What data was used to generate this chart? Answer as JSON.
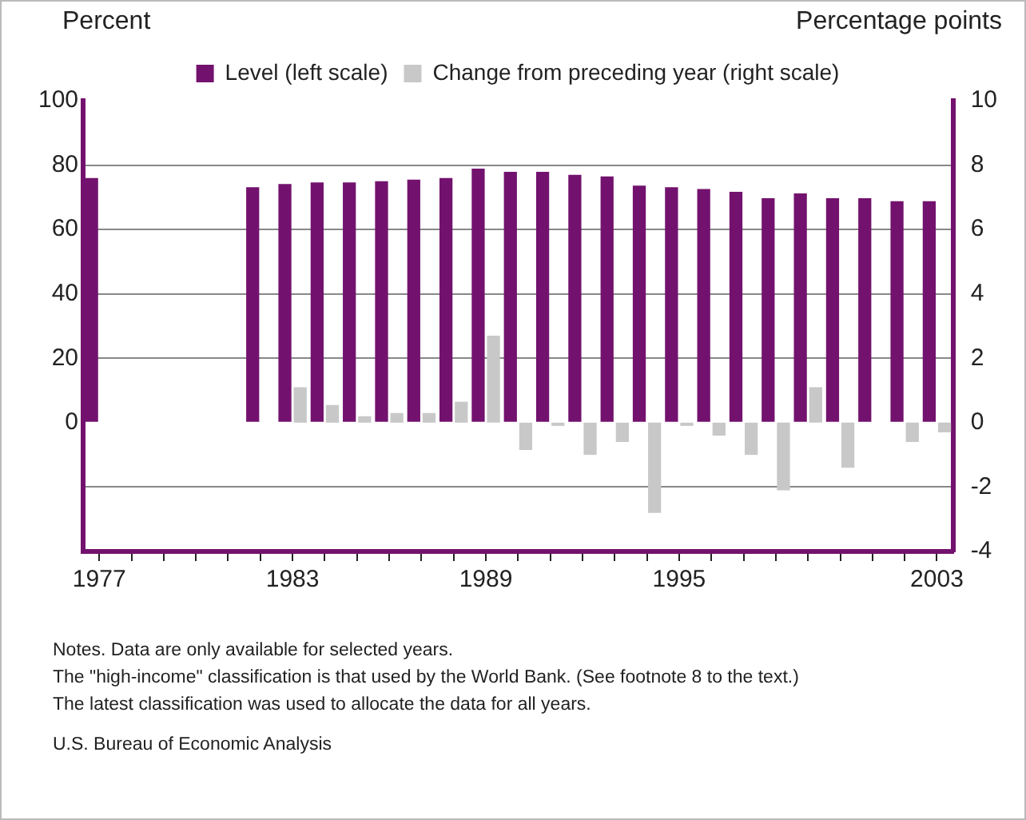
{
  "chart_data": {
    "type": "bar",
    "ylabel": "Percent",
    "y2label": "Percentage points",
    "categories": [
      "1977",
      null,
      null,
      null,
      null,
      null,
      "1983",
      null,
      null,
      null,
      null,
      null,
      "1989",
      null,
      null,
      null,
      null,
      null,
      "1995",
      null,
      null,
      null,
      null,
      null,
      null,
      null,
      "2003"
    ],
    "series": [
      {
        "name": "Level (left scale)",
        "color": "#73126e",
        "values": [
          76,
          null,
          null,
          null,
          null,
          73.1,
          74.1,
          74.6,
          74.6,
          75.0,
          75.5,
          76.0,
          78.9,
          77.9,
          77.9,
          77.0,
          76.5,
          73.6,
          73.1,
          72.6,
          71.7,
          69.7,
          71.2,
          69.7,
          69.7,
          68.8,
          68.8
        ]
      },
      {
        "name": "Change from preceding year (right scale)",
        "color": "#c8c8c8",
        "axis": "y2",
        "values": [
          null,
          null,
          null,
          null,
          null,
          null,
          1.1,
          0.55,
          0.2,
          0.3,
          0.3,
          0.65,
          2.7,
          -0.85,
          -0.1,
          -1.0,
          -0.6,
          -2.8,
          -0.1,
          -0.4,
          -1.0,
          -2.1,
          1.1,
          -1.4,
          0,
          -0.6,
          -0.3
        ]
      }
    ],
    "ylim": [
      -40,
      100
    ],
    "yticks": [
      {
        "value": -40,
        "label": null
      },
      {
        "value": -20,
        "label": null
      },
      0,
      20,
      40,
      60,
      80,
      100
    ],
    "y2lim": [
      -4,
      10
    ],
    "y2ticks": [
      -4,
      -2,
      0,
      2,
      4,
      6,
      8,
      10
    ],
    "grid": "y",
    "legend": "top",
    "annotations": [
      "Notes. Data are only available for selected years.",
      "The \"high-income\" classification is that used by the World Bank. (See footnote 8 to the text.)",
      "The latest classification was  used to allocate the data for all years.",
      "U.S. Bureau of Economic Analysis"
    ]
  }
}
